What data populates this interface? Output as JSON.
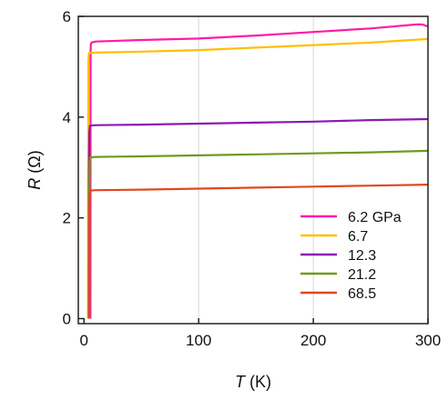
{
  "chart_data": {
    "type": "line",
    "xlabel_italic": "T",
    "xlabel_unit": " (K)",
    "ylabel_italic": "R",
    "ylabel_unit": " (Ω)",
    "xlim": [
      -5,
      300
    ],
    "ylim": [
      -0.1,
      6
    ],
    "xticks": [
      0,
      100,
      200,
      300
    ],
    "yticks": [
      0,
      2,
      4,
      6
    ],
    "legend_position": "bottom-right",
    "series": [
      {
        "name": "6.2 GPa",
        "color": "#ff1aa8",
        "points": [
          [
            5.6,
            0
          ],
          [
            5.7,
            5.2
          ],
          [
            5.9,
            5.45
          ],
          [
            6.5,
            5.48
          ],
          [
            10,
            5.5
          ],
          [
            50,
            5.53
          ],
          [
            100,
            5.56
          ],
          [
            150,
            5.62
          ],
          [
            200,
            5.69
          ],
          [
            250,
            5.76
          ],
          [
            290,
            5.84
          ],
          [
            295,
            5.84
          ],
          [
            300,
            5.8
          ]
        ]
      },
      {
        "name": "6.7",
        "color": "#ffbf00",
        "points": [
          [
            3.5,
            0
          ],
          [
            3.6,
            3.0
          ],
          [
            3.8,
            5.1
          ],
          [
            4.3,
            5.27
          ],
          [
            10,
            5.28
          ],
          [
            50,
            5.3
          ],
          [
            100,
            5.33
          ],
          [
            150,
            5.38
          ],
          [
            200,
            5.43
          ],
          [
            250,
            5.48
          ],
          [
            300,
            5.55
          ]
        ]
      },
      {
        "name": "12.3",
        "color": "#8a1ab0",
        "points": [
          [
            4.2,
            0
          ],
          [
            4.3,
            2.8
          ],
          [
            4.6,
            3.7
          ],
          [
            5.2,
            3.83
          ],
          [
            10,
            3.84
          ],
          [
            50,
            3.85
          ],
          [
            100,
            3.87
          ],
          [
            150,
            3.89
          ],
          [
            200,
            3.91
          ],
          [
            250,
            3.94
          ],
          [
            300,
            3.96
          ]
        ]
      },
      {
        "name": "21.2",
        "color": "#6f9a1e",
        "points": [
          [
            4.5,
            0
          ],
          [
            4.6,
            2.5
          ],
          [
            4.9,
            3.1
          ],
          [
            5.4,
            3.2
          ],
          [
            10,
            3.21
          ],
          [
            50,
            3.22
          ],
          [
            100,
            3.24
          ],
          [
            150,
            3.26
          ],
          [
            200,
            3.28
          ],
          [
            250,
            3.3
          ],
          [
            300,
            3.33
          ]
        ]
      },
      {
        "name": "68.5",
        "color": "#e0481f",
        "points": [
          [
            4.6,
            0
          ],
          [
            4.7,
            2.2
          ],
          [
            5.0,
            2.48
          ],
          [
            5.5,
            2.54
          ],
          [
            10,
            2.55
          ],
          [
            50,
            2.56
          ],
          [
            100,
            2.58
          ],
          [
            150,
            2.6
          ],
          [
            200,
            2.62
          ],
          [
            250,
            2.64
          ],
          [
            300,
            2.66
          ]
        ]
      }
    ]
  }
}
